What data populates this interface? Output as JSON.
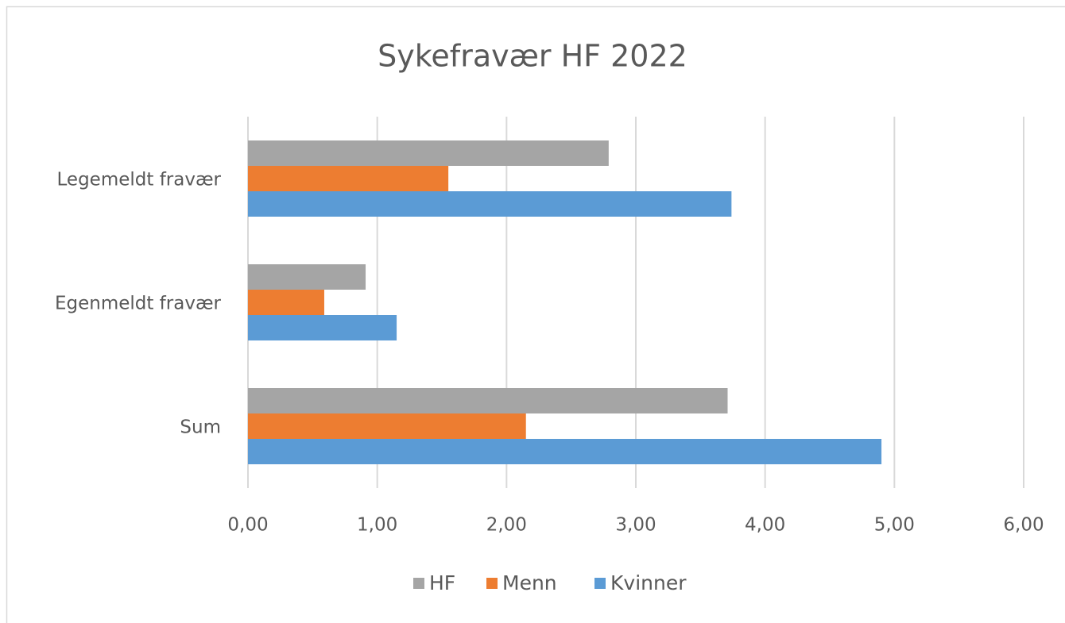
{
  "chart_data": {
    "type": "hbar",
    "title": "Sykefravær HF 2022",
    "categories": [
      "Legemeldt fravær",
      "Egenmeldt fravær",
      "Sum"
    ],
    "series": [
      {
        "name": "HF",
        "color": "#a5a5a5",
        "values": [
          2.79,
          0.91,
          3.71
        ]
      },
      {
        "name": "Menn",
        "color": "#ed7d31",
        "values": [
          1.55,
          0.59,
          2.15
        ]
      },
      {
        "name": "Kvinner",
        "color": "#5b9bd5",
        "values": [
          3.74,
          1.15,
          4.9
        ]
      }
    ],
    "xlim": [
      0,
      6
    ],
    "xticks": [
      {
        "value": 0,
        "label": "0,00"
      },
      {
        "value": 1,
        "label": "1,00"
      },
      {
        "value": 2,
        "label": "2,00"
      },
      {
        "value": 3,
        "label": "3,00"
      },
      {
        "value": 4,
        "label": "4,00"
      },
      {
        "value": 5,
        "label": "5,00"
      },
      {
        "value": 6,
        "label": "6,00"
      }
    ],
    "grid": true,
    "legend": "bottom"
  }
}
